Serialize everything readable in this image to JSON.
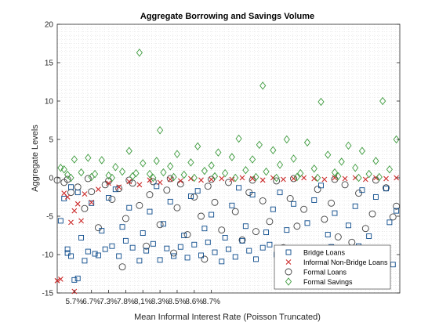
{
  "chart_data": {
    "type": "scatter",
    "title": "Aggregate Borrowing and Savings Volume",
    "xlabel": "Mean Informal Interest Rate (Poisson Truncated)",
    "ylabel": "Aggregate Levels",
    "xlim": [
      0,
      100
    ],
    "ylim": [
      -15,
      20
    ],
    "yticks": [
      -15,
      -10,
      -5,
      0,
      5,
      10,
      15,
      20
    ],
    "xticks": [
      {
        "x": 5,
        "label": "5.7%"
      },
      {
        "x": 10,
        "label": "6.7%"
      },
      {
        "x": 15,
        "label": "7.3%"
      },
      {
        "x": 20,
        "label": "7.8%"
      },
      {
        "x": 25,
        "label": "8,1%"
      },
      {
        "x": 30,
        "label": "8.3%"
      },
      {
        "x": 35,
        "label": "8.5%"
      },
      {
        "x": 40,
        "label": "8.6%"
      },
      {
        "x": 45,
        "label": "8.7%"
      }
    ],
    "grid": "minor-dotted",
    "legend_position": "bottom-right",
    "series": [
      {
        "name": "Bridge Loans",
        "marker": "square",
        "color": "#0b4a8b",
        "points": [
          [
            1,
            -5.6
          ],
          [
            3,
            -9.3
          ],
          [
            3,
            -9.8
          ],
          [
            4,
            -10.2
          ],
          [
            5,
            -13.3
          ],
          [
            6,
            -13.1
          ],
          [
            8,
            -10.8
          ],
          [
            9,
            -9.6
          ],
          [
            11,
            -9.9
          ],
          [
            12,
            -10.1
          ],
          [
            14,
            -9.3
          ],
          [
            16,
            -8.9
          ],
          [
            18,
            -10.2
          ],
          [
            20,
            -8.2
          ],
          [
            22,
            -9.1
          ],
          [
            24,
            -10.8
          ],
          [
            26,
            -9.5
          ],
          [
            28,
            -8.6
          ],
          [
            30,
            -10.7
          ],
          [
            32,
            -9.2
          ],
          [
            34,
            -10.2
          ],
          [
            36,
            -9.0
          ],
          [
            38,
            -10.4
          ],
          [
            40,
            -8.7
          ],
          [
            42,
            -10.1
          ],
          [
            44,
            -8.4
          ],
          [
            46,
            -9.7
          ],
          [
            48,
            -10.9
          ],
          [
            50,
            -9.3
          ],
          [
            52,
            -10.3
          ],
          [
            54,
            -8.2
          ],
          [
            56,
            -9.5
          ],
          [
            58,
            -10.6
          ],
          [
            60,
            -9.1
          ],
          [
            62,
            -8.7
          ],
          [
            64,
            -10.0
          ],
          [
            66,
            -11.2
          ],
          [
            68,
            -9.4
          ],
          [
            70,
            -10.5
          ],
          [
            72,
            -9.9
          ],
          [
            74,
            -10.8
          ],
          [
            76,
            -9.7
          ],
          [
            78,
            -10.3
          ],
          [
            80,
            -9.0
          ],
          [
            82,
            -11.0
          ],
          [
            84,
            -10.2
          ],
          [
            86,
            -10.6
          ],
          [
            88,
            -8.9
          ],
          [
            90,
            -10.4
          ],
          [
            92,
            -11.1
          ],
          [
            95,
            -9.6
          ],
          [
            98,
            -11.3
          ],
          [
            7,
            -7.8
          ],
          [
            13,
            -6.9
          ],
          [
            19,
            -6.4
          ],
          [
            25,
            -7.2
          ],
          [
            31,
            -6.0
          ],
          [
            37,
            -7.5
          ],
          [
            43,
            -6.6
          ],
          [
            49,
            -7.8
          ],
          [
            55,
            -6.3
          ],
          [
            61,
            -7.1
          ],
          [
            67,
            -6.8
          ],
          [
            73,
            -5.9
          ],
          [
            79,
            -7.4
          ],
          [
            85,
            -6.2
          ],
          [
            91,
            -7.6
          ],
          [
            97,
            -5.8
          ],
          [
            2,
            -2.7
          ],
          [
            6,
            -1.9
          ],
          [
            10,
            -3.3
          ],
          [
            15,
            -2.6
          ],
          [
            21,
            -3.9
          ],
          [
            27,
            -4.4
          ],
          [
            33,
            -3.1
          ],
          [
            39,
            -2.4
          ],
          [
            45,
            -4.8
          ],
          [
            51,
            -3.6
          ],
          [
            57,
            -2.2
          ],
          [
            63,
            -4.1
          ],
          [
            69,
            -3.4
          ],
          [
            75,
            -2.9
          ],
          [
            81,
            -4.6
          ],
          [
            87,
            -3.7
          ],
          [
            93,
            -2.5
          ],
          [
            99,
            -4.3
          ],
          [
            4,
            -1.2
          ],
          [
            17,
            -1.5
          ],
          [
            29,
            -1.1
          ],
          [
            41,
            -1.7
          ],
          [
            53,
            -1.3
          ],
          [
            65,
            -1.9
          ],
          [
            77,
            -1.0
          ],
          [
            89,
            -1.6
          ],
          [
            96,
            -1.4
          ]
        ]
      },
      {
        "name": "Informal Non-Bridge Loans",
        "marker": "x",
        "color": "#cc2b2b",
        "points": [
          [
            0,
            -13.4
          ],
          [
            1,
            -13.2
          ],
          [
            2,
            -2.0
          ],
          [
            3,
            -2.5
          ],
          [
            4,
            -5.8
          ],
          [
            5,
            -14.8
          ],
          [
            5,
            -4.3
          ],
          [
            6,
            -3.4
          ],
          [
            7,
            -5.6
          ],
          [
            8,
            -2.1
          ],
          [
            10,
            -3.2
          ],
          [
            12,
            -1.5
          ],
          [
            15,
            -0.7
          ],
          [
            18,
            -1.2
          ],
          [
            21,
            -0.5
          ],
          [
            24,
            -0.9
          ],
          [
            27,
            -0.3
          ],
          [
            30,
            -0.6
          ],
          [
            33,
            -0.2
          ],
          [
            36,
            -0.4
          ],
          [
            39,
            -0.1
          ],
          [
            42,
            -0.3
          ],
          [
            45,
            -0.2
          ],
          [
            48,
            -0.1
          ],
          [
            51,
            -0.2
          ],
          [
            54,
            0.0
          ],
          [
            57,
            -0.1
          ],
          [
            60,
            -0.3
          ],
          [
            63,
            0.0
          ],
          [
            66,
            -0.2
          ],
          [
            69,
            -0.1
          ],
          [
            72,
            0.0
          ],
          [
            75,
            -0.1
          ],
          [
            78,
            -0.2
          ],
          [
            81,
            0.0
          ],
          [
            84,
            -0.1
          ],
          [
            87,
            0.0
          ],
          [
            90,
            -0.2
          ],
          [
            93,
            0.0
          ],
          [
            96,
            -0.1
          ],
          [
            99,
            0.0
          ]
        ]
      },
      {
        "name": "Formal Loans",
        "marker": "circle",
        "color": "#404040",
        "points": [
          [
            0,
            -0.3
          ],
          [
            2,
            -0.6
          ],
          [
            4,
            -1.9
          ],
          [
            6,
            -1.2
          ],
          [
            8,
            -4.0
          ],
          [
            10,
            -1.8
          ],
          [
            12,
            -6.5
          ],
          [
            14,
            -0.9
          ],
          [
            16,
            -2.8
          ],
          [
            18,
            -1.4
          ],
          [
            19,
            -11.6
          ],
          [
            20,
            -5.3
          ],
          [
            22,
            -0.7
          ],
          [
            24,
            -3.6
          ],
          [
            26,
            -8.9
          ],
          [
            27,
            -2.2
          ],
          [
            28,
            -0.5
          ],
          [
            30,
            -6.1
          ],
          [
            32,
            -1.6
          ],
          [
            34,
            -9.8
          ],
          [
            35,
            -3.9
          ],
          [
            36,
            -0.8
          ],
          [
            38,
            -7.4
          ],
          [
            40,
            -2.5
          ],
          [
            42,
            -5.0
          ],
          [
            43,
            -10.6
          ],
          [
            44,
            -1.1
          ],
          [
            46,
            -3.2
          ],
          [
            48,
            -6.8
          ],
          [
            50,
            -0.6
          ],
          [
            52,
            -4.4
          ],
          [
            54,
            -8.1
          ],
          [
            56,
            -1.9
          ],
          [
            58,
            -7.0
          ],
          [
            60,
            -3.0
          ],
          [
            62,
            -5.7
          ],
          [
            64,
            -0.4
          ],
          [
            66,
            -9.1
          ],
          [
            68,
            -2.7
          ],
          [
            70,
            -6.3
          ],
          [
            72,
            -4.1
          ],
          [
            74,
            -10.3
          ],
          [
            76,
            -1.5
          ],
          [
            78,
            -5.4
          ],
          [
            80,
            -3.3
          ],
          [
            82,
            -7.7
          ],
          [
            84,
            -0.9
          ],
          [
            86,
            -8.4
          ],
          [
            88,
            -2.0
          ],
          [
            90,
            -6.6
          ],
          [
            92,
            -4.7
          ],
          [
            94,
            -9.5
          ],
          [
            96,
            -1.3
          ],
          [
            98,
            -5.1
          ],
          [
            99,
            -3.7
          ],
          [
            3,
            -0.2
          ],
          [
            9,
            -0.1
          ],
          [
            15,
            -0.4
          ],
          [
            21,
            -0.3
          ],
          [
            33,
            -0.1
          ],
          [
            45,
            -0.2
          ],
          [
            57,
            -0.3
          ],
          [
            69,
            -0.1
          ],
          [
            81,
            -0.2
          ],
          [
            93,
            -0.3
          ]
        ]
      },
      {
        "name": "Formal Savings",
        "marker": "diamond",
        "color": "#3c9a3c",
        "points": [
          [
            1,
            1.3
          ],
          [
            2,
            1.1
          ],
          [
            3,
            0.4
          ],
          [
            5,
            2.4
          ],
          [
            7,
            0.7
          ],
          [
            9,
            2.6
          ],
          [
            11,
            0.5
          ],
          [
            13,
            2.3
          ],
          [
            15,
            0.3
          ],
          [
            17,
            1.4
          ],
          [
            19,
            0.8
          ],
          [
            21,
            3.5
          ],
          [
            23,
            0.6
          ],
          [
            24,
            16.3
          ],
          [
            25,
            1.9
          ],
          [
            27,
            0.5
          ],
          [
            29,
            2.2
          ],
          [
            30,
            6.2
          ],
          [
            31,
            0.7
          ],
          [
            33,
            1.5
          ],
          [
            35,
            3.1
          ],
          [
            37,
            0.4
          ],
          [
            39,
            2.0
          ],
          [
            41,
            4.1
          ],
          [
            43,
            0.9
          ],
          [
            45,
            1.6
          ],
          [
            47,
            3.3
          ],
          [
            49,
            0.6
          ],
          [
            51,
            2.7
          ],
          [
            53,
            5.1
          ],
          [
            55,
            1.0
          ],
          [
            57,
            2.4
          ],
          [
            59,
            4.3
          ],
          [
            60,
            12.0
          ],
          [
            61,
            0.8
          ],
          [
            63,
            3.6
          ],
          [
            65,
            1.7
          ],
          [
            67,
            5.0
          ],
          [
            69,
            2.5
          ],
          [
            71,
            0.6
          ],
          [
            73,
            4.6
          ],
          [
            75,
            1.2
          ],
          [
            77,
            9.9
          ],
          [
            79,
            3.0
          ],
          [
            81,
            0.7
          ],
          [
            83,
            2.1
          ],
          [
            85,
            4.2
          ],
          [
            87,
            1.3
          ],
          [
            89,
            3.5
          ],
          [
            91,
            0.5
          ],
          [
            93,
            2.2
          ],
          [
            95,
            10.0
          ],
          [
            97,
            1.1
          ],
          [
            99,
            5.0
          ],
          [
            4,
            0.0
          ],
          [
            10,
            0.1
          ],
          [
            16,
            0.0
          ],
          [
            22,
            0.2
          ],
          [
            28,
            0.0
          ],
          [
            34,
            0.1
          ],
          [
            40,
            0.0
          ],
          [
            46,
            0.2
          ],
          [
            52,
            0.0
          ],
          [
            58,
            0.1
          ],
          [
            64,
            0.0
          ],
          [
            70,
            0.1
          ],
          [
            76,
            0.0
          ],
          [
            82,
            0.2
          ],
          [
            88,
            0.0
          ],
          [
            94,
            0.1
          ]
        ]
      }
    ]
  }
}
